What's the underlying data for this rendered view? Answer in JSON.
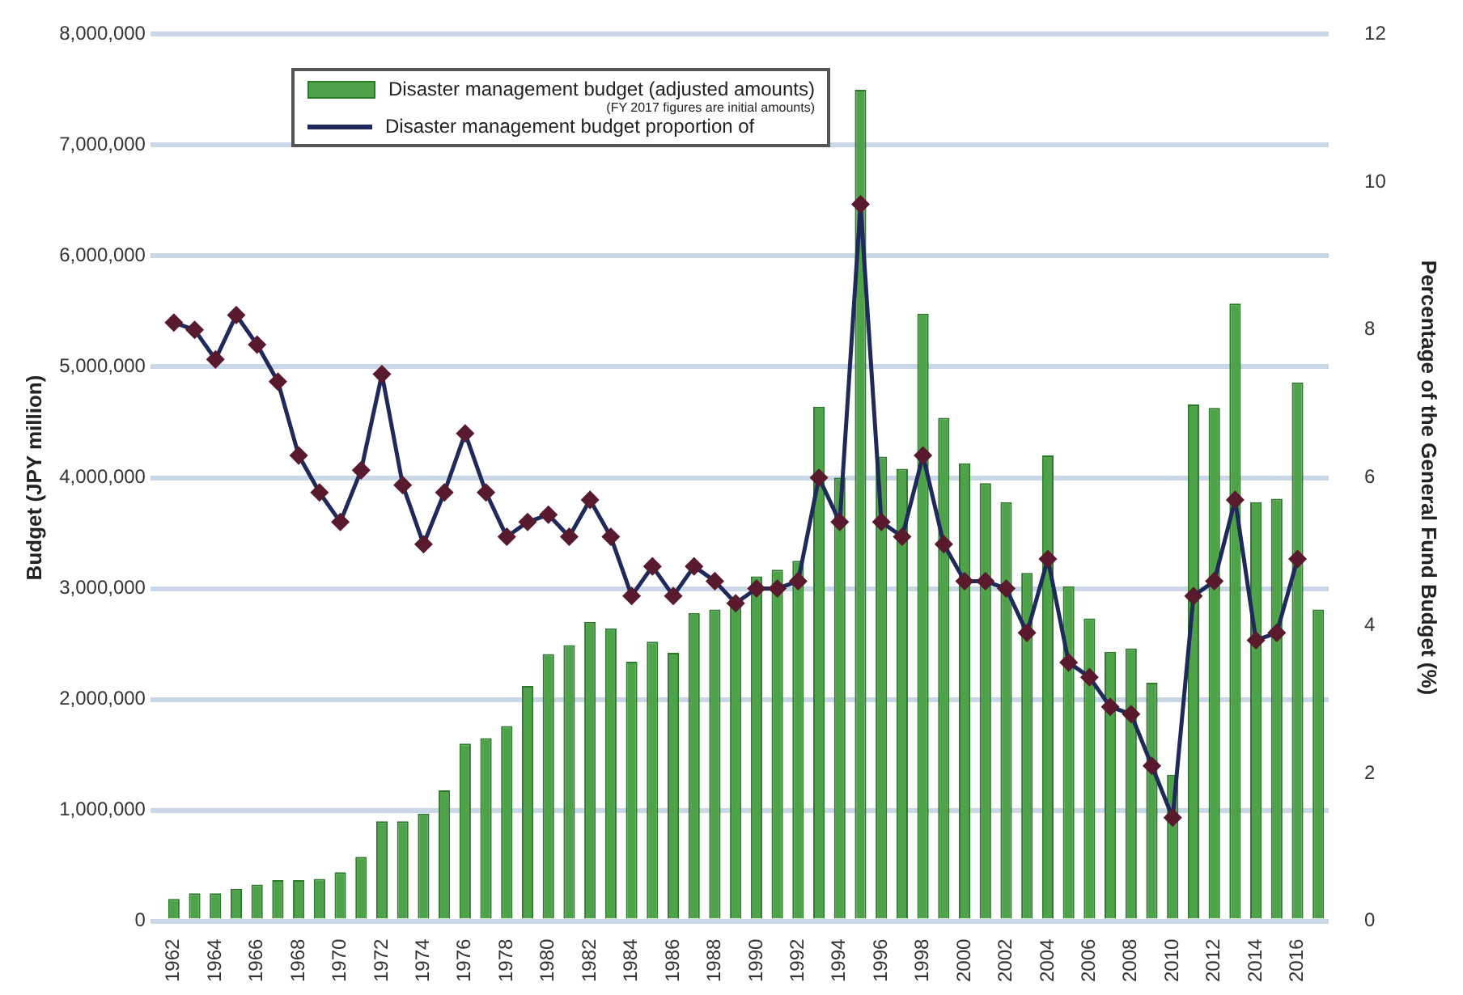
{
  "chart_data": {
    "type": "bar",
    "ylabel": "Budget (JPY million)",
    "y2label": "Percentage of the General Fund Budget (%)",
    "categories": [
      "1962",
      null,
      "1964",
      null,
      "1966",
      null,
      "1968",
      null,
      "1970",
      null,
      "1972",
      null,
      "1974",
      null,
      "1976",
      null,
      "1978",
      null,
      "1980",
      null,
      "1982",
      null,
      "1984",
      null,
      "1986",
      null,
      "1988",
      null,
      "1990",
      null,
      "1992",
      null,
      "1994",
      null,
      "1996",
      null,
      "1998",
      null,
      "2000",
      null,
      "2002",
      null,
      "2004",
      null,
      "2006",
      null,
      "2008",
      null,
      "2010",
      null,
      "2012",
      null,
      "2014",
      null,
      "2016",
      null
    ],
    "series": [
      {
        "name": "Disaster management budget (adjusted amounts)",
        "color": "#4ea34a",
        "values": [
          200000,
          250000,
          250000,
          290000,
          330000,
          370000,
          370000,
          380000,
          440000,
          580000,
          900000,
          900000,
          970000,
          1180000,
          1600000,
          1650000,
          1760000,
          2120000,
          2410000,
          2490000,
          2700000,
          2640000,
          2340000,
          2520000,
          2420000,
          2780000,
          2810000,
          2850000,
          3110000,
          3170000,
          3250000,
          4640000,
          4000000,
          7500000,
          4190000,
          4080000,
          5480000,
          4540000,
          4130000,
          3950000,
          3780000,
          3140000,
          4200000,
          3020000,
          2730000,
          2430000,
          2460000,
          2150000,
          1320000,
          4660000,
          4630000,
          5570000,
          3780000,
          3810000,
          4860000,
          2810000
        ]
      },
      {
        "type": "line",
        "axis": "y2",
        "name": "Disaster management budget proportion of",
        "color": "#1f2a5a",
        "values": [
          8.1,
          8.0,
          7.6,
          8.2,
          7.8,
          7.3,
          6.3,
          5.8,
          5.4,
          6.1,
          7.4,
          5.9,
          5.1,
          5.8,
          6.6,
          5.8,
          5.2,
          5.4,
          5.5,
          5.2,
          5.7,
          5.2,
          4.4,
          4.8,
          4.4,
          4.8,
          4.6,
          4.3,
          4.5,
          4.5,
          4.6,
          6.0,
          5.4,
          9.7,
          5.4,
          5.2,
          6.3,
          5.1,
          4.6,
          4.6,
          4.5,
          3.9,
          4.9,
          3.5,
          3.3,
          2.9,
          2.8,
          2.1,
          1.4,
          4.4,
          4.6,
          5.7,
          3.8,
          3.9,
          4.9,
          null
        ]
      }
    ],
    "ylim": [
      0,
      8000000
    ],
    "yticks": [
      0,
      {
        "value": 1000000,
        "label": "1,000,000"
      },
      {
        "value": 2000000,
        "label": "2,000,000"
      },
      {
        "value": 3000000,
        "label": "3,000,000"
      },
      {
        "value": 4000000,
        "label": "4,000,000"
      },
      {
        "value": 5000000,
        "label": "5,000,000"
      },
      {
        "value": 6000000,
        "label": "6,000,000"
      },
      {
        "value": 7000000,
        "label": "7,000,000"
      },
      {
        "value": 8000000,
        "label": "8,000,000"
      }
    ],
    "y2lim": [
      0,
      12
    ],
    "y2ticks": [
      0,
      2,
      4,
      6,
      8,
      10,
      12
    ],
    "grid": "y",
    "legend": "top left",
    "marker": "diamond",
    "line_style": "solid",
    "annotations": [
      "(FY 2017 figures are initial amounts)"
    ]
  }
}
